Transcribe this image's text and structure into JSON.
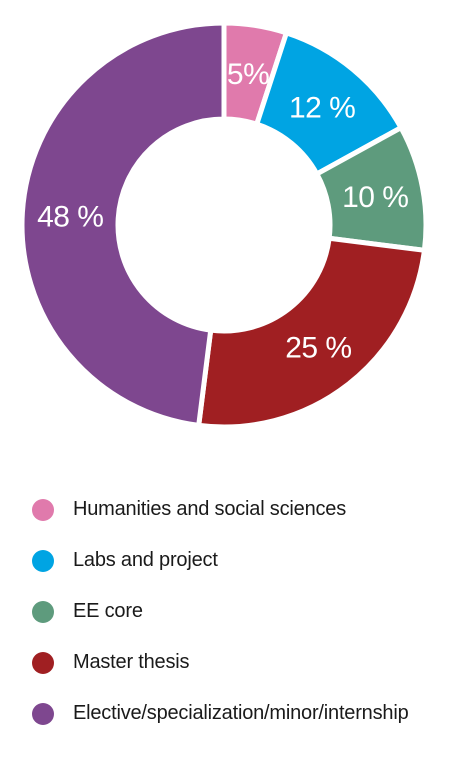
{
  "chart_data": {
    "type": "pie",
    "donut": true,
    "categories": [
      "Humanities and social sciences",
      "Labs and project",
      "EE core",
      "Master thesis",
      "Elective/specialization/minor/internship"
    ],
    "values": [
      5,
      12,
      10,
      25,
      48
    ],
    "data_labels": [
      "5%",
      "12 %",
      "10 %",
      "25 %",
      "48 %"
    ],
    "colors": [
      "#e07aac",
      "#00a4e3",
      "#5e9b7d",
      "#a01f22",
      "#7e478f"
    ],
    "legend_placement": "bottom"
  }
}
